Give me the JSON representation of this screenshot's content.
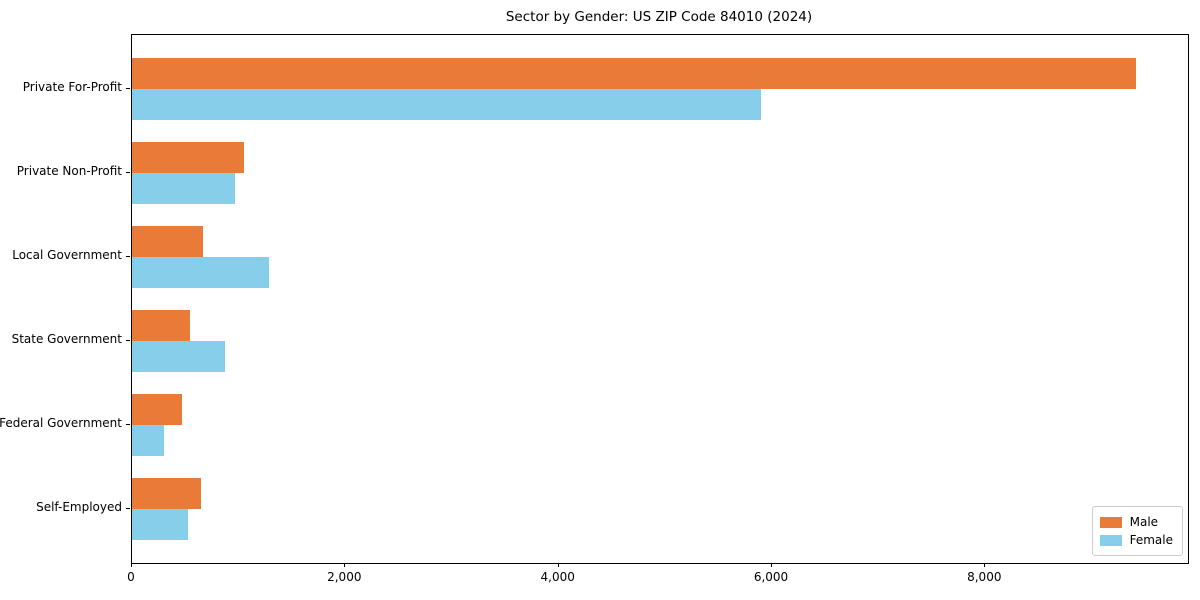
{
  "title": "Sector by Gender: US ZIP Code 84010 (2024)",
  "colors": {
    "male": "#e97a38",
    "female": "#87ceeb",
    "spine": "#000000",
    "legend_border": "#cccccc",
    "background": "#ffffff"
  },
  "chart_data": {
    "type": "bar",
    "orientation": "horizontal",
    "title": "Sector by Gender: US ZIP Code 84010 (2024)",
    "categories": [
      "Private For-Profit",
      "Private Non-Profit",
      "Local Government",
      "State Government",
      "Federal Government",
      "Self-Employed"
    ],
    "series": [
      {
        "name": "Male",
        "color": "#e97a38",
        "values": [
          9410,
          1050,
          665,
          545,
          470,
          645
        ]
      },
      {
        "name": "Female",
        "color": "#87ceeb",
        "values": [
          5900,
          965,
          1285,
          870,
          300,
          525
        ]
      }
    ],
    "xlabel": "",
    "ylabel": "",
    "xlim": [
      0,
      9900
    ],
    "x_ticks": [
      0,
      2000,
      4000,
      6000,
      8000
    ],
    "x_tick_labels": [
      "0",
      "2,000",
      "4,000",
      "6,000",
      "8,000"
    ],
    "grid": false,
    "legend": {
      "position": "lower right",
      "entries": [
        "Male",
        "Female"
      ]
    }
  }
}
